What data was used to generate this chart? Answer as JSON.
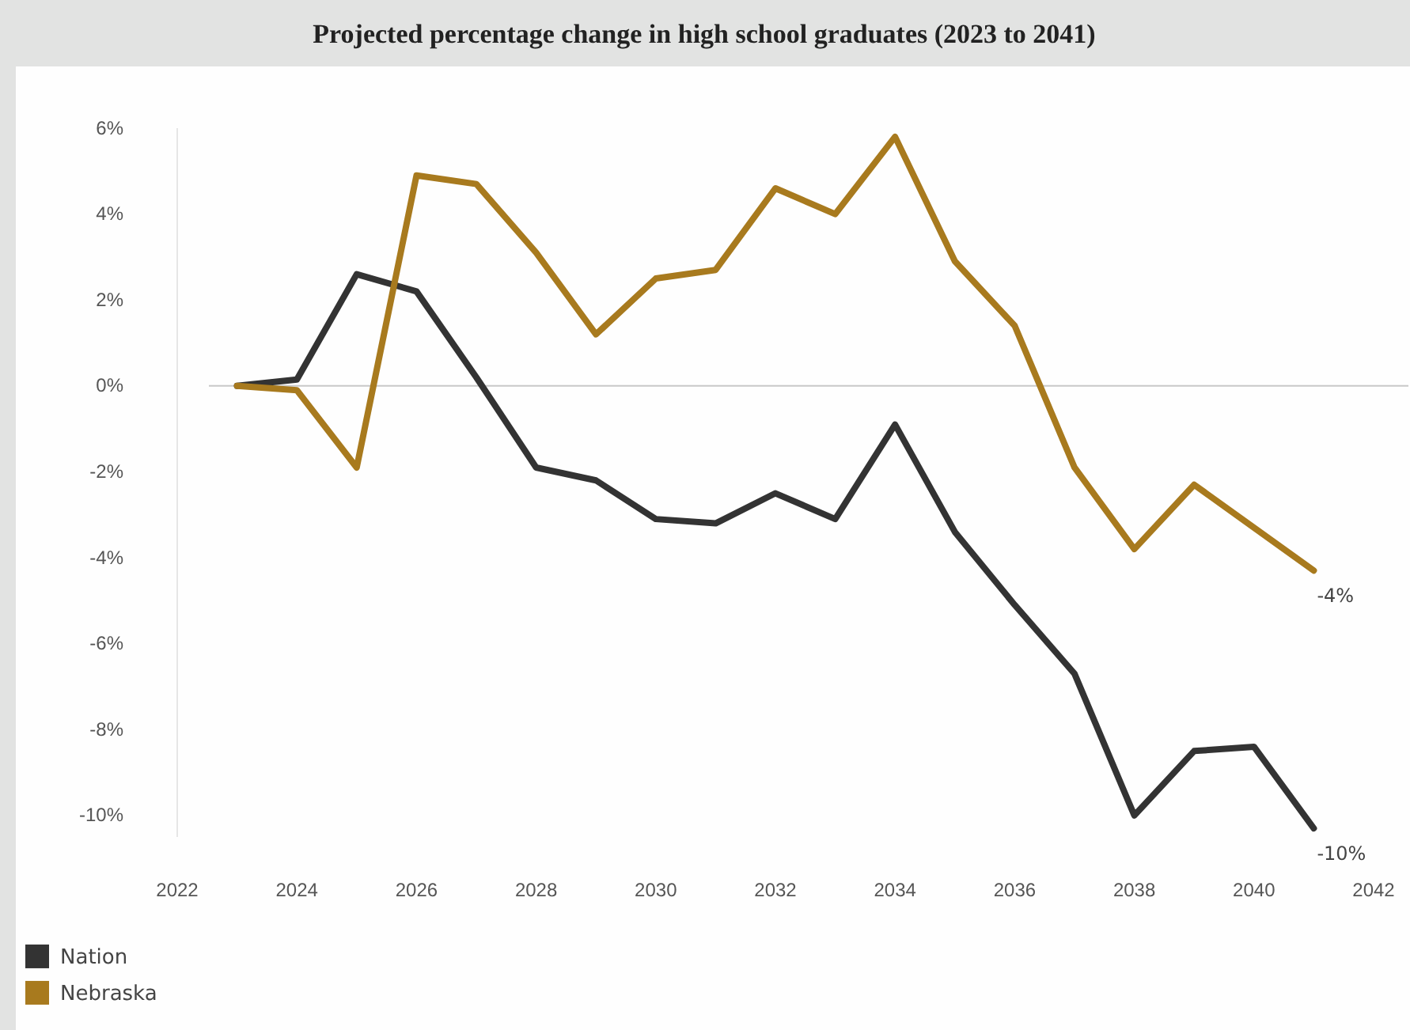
{
  "chart_data": {
    "type": "line",
    "title": "Projected percentage change in high school graduates (2023 to 2041)",
    "x": [
      2023,
      2024,
      2025,
      2026,
      2027,
      2028,
      2029,
      2030,
      2031,
      2032,
      2033,
      2034,
      2035,
      2036,
      2037,
      2038,
      2039,
      2040,
      2041
    ],
    "series": [
      {
        "name": "Nation",
        "color": "#333333",
        "values": [
          0,
          0.15,
          2.6,
          2.2,
          0.2,
          -1.9,
          -2.2,
          -3.1,
          -3.2,
          -2.5,
          -3.1,
          -0.9,
          -3.4,
          -5.1,
          -6.7,
          -10.0,
          -8.5,
          -8.4,
          -10.3
        ],
        "value_labels": [
          null,
          null,
          null,
          null,
          null,
          null,
          null,
          null,
          null,
          null,
          null,
          null,
          null,
          null,
          null,
          null,
          null,
          null,
          "-10%"
        ]
      },
      {
        "name": "Nebraska",
        "color": "#a87a1e",
        "values": [
          0,
          -0.1,
          -1.9,
          4.9,
          4.7,
          3.1,
          1.2,
          2.5,
          2.7,
          4.6,
          4.0,
          5.8,
          2.9,
          1.4,
          -1.9,
          -3.8,
          -2.3,
          -3.3,
          -4.3
        ],
        "value_labels": [
          null,
          null,
          null,
          null,
          null,
          null,
          null,
          null,
          null,
          null,
          null,
          null,
          null,
          null,
          null,
          null,
          null,
          null,
          "-4%"
        ]
      }
    ],
    "xlim": [
      2022,
      2042
    ],
    "xticks": [
      2022,
      2024,
      2026,
      2028,
      2030,
      2032,
      2034,
      2036,
      2038,
      2040,
      2042
    ],
    "ylim": [
      -10.5,
      6
    ],
    "yticks": [
      {
        "value": 6,
        "label": "6%"
      },
      {
        "value": 4,
        "label": "4%"
      },
      {
        "value": 2,
        "label": "2%"
      },
      {
        "value": 0,
        "label": "0%"
      },
      {
        "value": -2,
        "label": "-2%"
      },
      {
        "value": -4,
        "label": "-4%"
      },
      {
        "value": -6,
        "label": "-6%"
      },
      {
        "value": -8,
        "label": "-8%"
      },
      {
        "value": -10,
        "label": "-10%"
      }
    ],
    "ref_lines": [
      {
        "axis": "y",
        "value": 0,
        "color": "#c8c8c8"
      }
    ],
    "grid": false,
    "legend": "bottom left",
    "line_style": "solid",
    "marker": "none"
  }
}
